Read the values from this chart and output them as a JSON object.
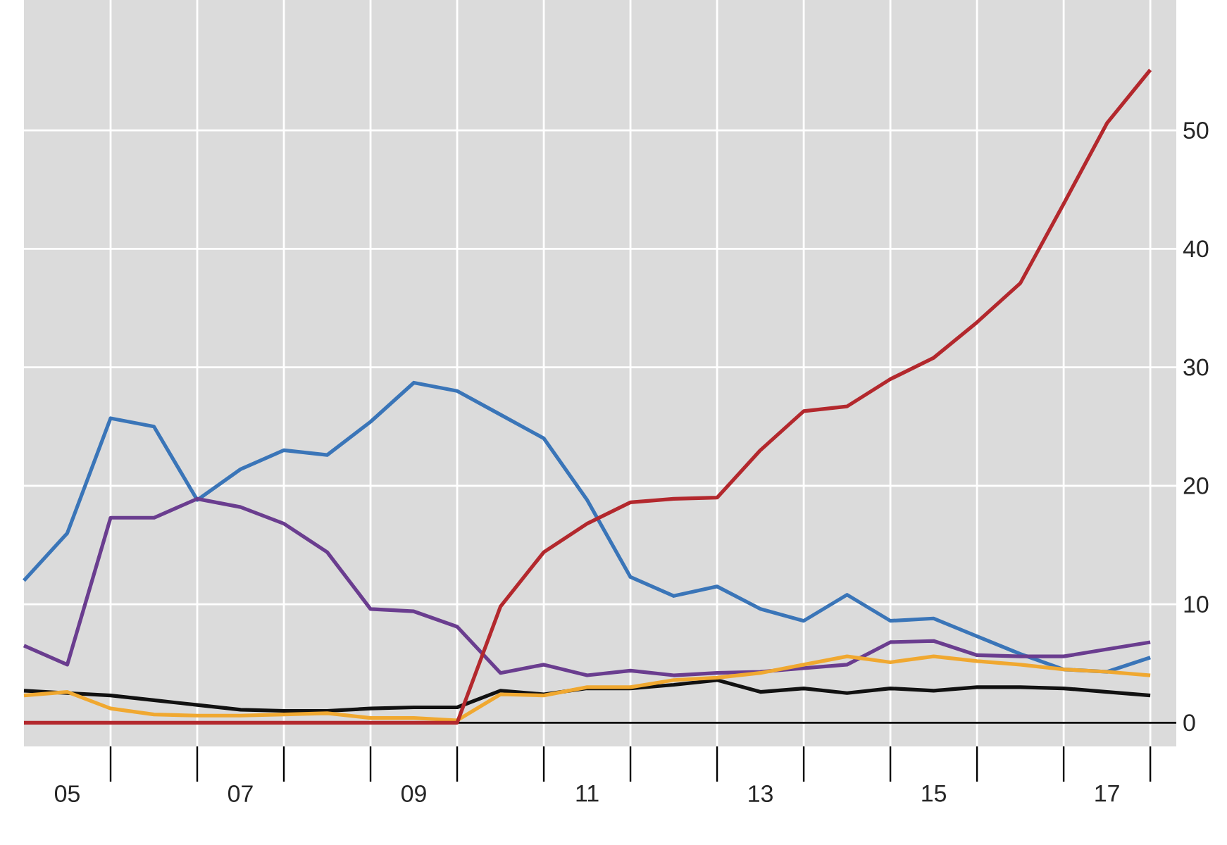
{
  "chart_data": {
    "type": "line",
    "x": [
      4.5,
      5.0,
      5.5,
      6.0,
      6.5,
      7.0,
      7.5,
      8.0,
      8.5,
      9.0,
      9.5,
      10.0,
      10.5,
      11.0,
      11.5,
      12.0,
      12.5,
      13.0,
      13.5,
      14.0,
      14.5,
      15.0,
      15.5,
      16.0,
      16.5,
      17.0,
      17.5
    ],
    "series": [
      {
        "color": "#111111",
        "values": [
          2.7,
          2.5,
          2.3,
          1.9,
          1.5,
          1.1,
          1.0,
          1.0,
          1.2,
          1.3,
          1.3,
          2.7,
          2.4,
          2.9,
          2.9,
          3.2,
          3.6,
          2.6,
          2.9,
          2.5,
          2.9,
          2.7,
          3.0,
          3.0,
          2.9,
          2.6,
          2.3
        ]
      },
      {
        "color": "#3a75b8",
        "values": [
          12,
          16,
          25.7,
          25,
          18.8,
          21.4,
          23,
          22.6,
          25.4,
          28.7,
          28,
          26,
          24,
          18.8,
          12.3,
          10.7,
          11.5,
          9.6,
          8.6,
          10.8,
          8.6,
          8.8,
          7.3,
          5.8,
          4.5,
          4.3,
          5.5
        ]
      },
      {
        "color": "#6a3d8f",
        "values": [
          6.5,
          4.9,
          17.3,
          17.3,
          18.9,
          18.2,
          16.8,
          14.4,
          9.6,
          9.4,
          8.1,
          4.2,
          4.9,
          4.0,
          4.4,
          4.0,
          4.2,
          4.3,
          4.6,
          4.9,
          6.8,
          6.9,
          5.7,
          5.6,
          5.6,
          6.2,
          6.8
        ]
      },
      {
        "color": "#f0a830",
        "values": [
          2.3,
          2.6,
          1.2,
          0.7,
          0.6,
          0.6,
          0.7,
          0.8,
          0.4,
          0.4,
          0.2,
          2.4,
          2.3,
          3.0,
          3.0,
          3.6,
          3.8,
          4.2,
          4.9,
          5.6,
          5.1,
          5.6,
          5.2,
          4.9,
          4.5,
          4.3,
          4.0
        ]
      },
      {
        "color": "#b3282d",
        "values": [
          0,
          0,
          0,
          0,
          0,
          0,
          0,
          0,
          0,
          0,
          0,
          9.8,
          14.4,
          16.8,
          18.6,
          18.9,
          19.0,
          23,
          26.3,
          26.7,
          29,
          30.8,
          33.8,
          37.1,
          43.8,
          50.6,
          55.1
        ]
      }
    ],
    "xlim": [
      4.5,
      17.8
    ],
    "xticks": [
      {
        "value": 5,
        "label": "05"
      },
      {
        "value": 7,
        "label": "07"
      },
      {
        "value": 9,
        "label": "09"
      },
      {
        "value": 11,
        "label": "11"
      },
      {
        "value": 13,
        "label": "13"
      },
      {
        "value": 15,
        "label": "15"
      },
      {
        "value": 17,
        "label": "17"
      },
      {
        "value": 5.5,
        "label": null
      },
      {
        "value": 6.5,
        "label": null
      },
      {
        "value": 7.5,
        "label": null
      },
      {
        "value": 8.5,
        "label": null
      },
      {
        "value": 9.5,
        "label": null
      },
      {
        "value": 10.5,
        "label": null
      },
      {
        "value": 11.5,
        "label": null
      },
      {
        "value": 12.5,
        "label": null
      },
      {
        "value": 13.5,
        "label": null
      },
      {
        "value": 14.5,
        "label": null
      },
      {
        "value": 15.5,
        "label": null
      },
      {
        "value": 16.5,
        "label": null
      },
      {
        "value": 17.5,
        "label": null
      }
    ],
    "ylim": [
      -2,
      61
    ],
    "yticks": [
      0,
      10,
      20,
      30,
      40,
      50
    ],
    "grid": true,
    "marker": "none",
    "line_style": "solid",
    "ref_lines": [
      {
        "axis": "y",
        "value": 0,
        "label": null,
        "color": "#000000"
      }
    ]
  }
}
